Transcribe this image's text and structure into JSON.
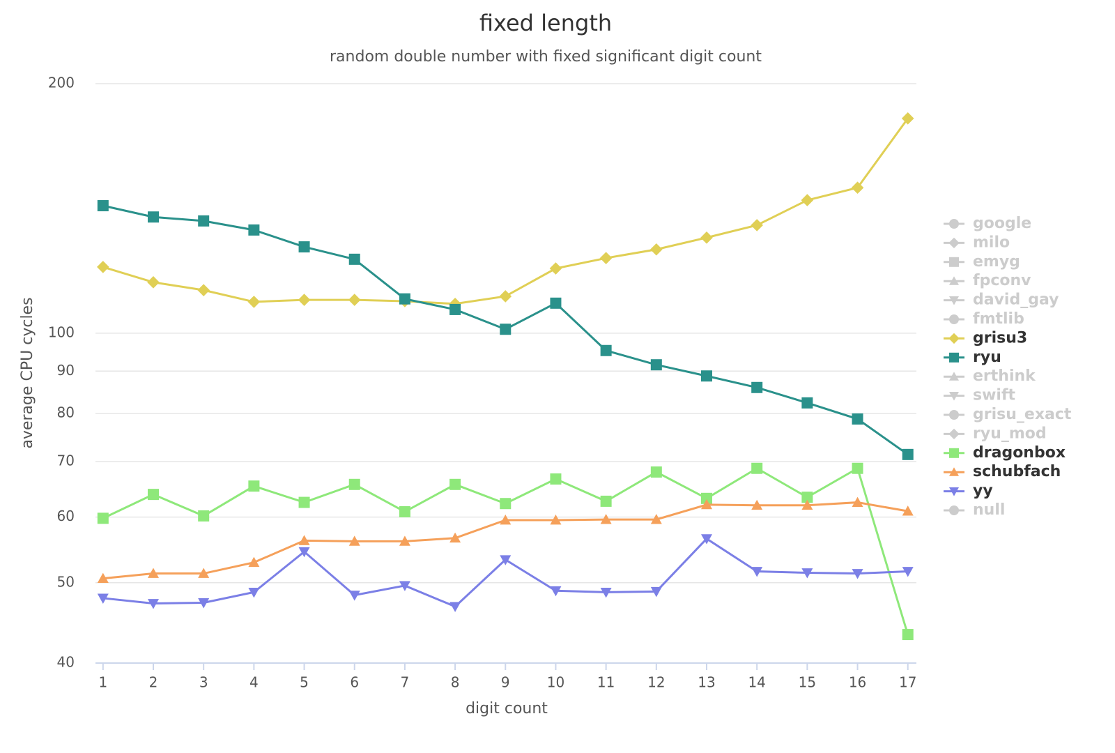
{
  "chart_data": {
    "type": "line",
    "title": "fixed length",
    "subtitle": "random double number with fixed significant digit count",
    "x_label": "digit count",
    "y_label": "average CPU cycles",
    "x": [
      1,
      2,
      3,
      4,
      5,
      6,
      7,
      8,
      9,
      10,
      11,
      12,
      13,
      14,
      15,
      16,
      17
    ],
    "xlim": [
      0.85,
      17.17
    ],
    "xticks": [
      1,
      2,
      3,
      4,
      5,
      6,
      7,
      8,
      9,
      10,
      11,
      12,
      13,
      14,
      15,
      16,
      17
    ],
    "ylim": [
      40,
      200
    ],
    "yticks": [
      40,
      50,
      60,
      70,
      80,
      90,
      100,
      200
    ],
    "log_y": true,
    "grid": true,
    "legend": "right",
    "hidden_color": "#cccccc",
    "series": [
      {
        "name": "google",
        "marker": "circle",
        "visible": false
      },
      {
        "name": "milo",
        "marker": "diamond",
        "visible": false
      },
      {
        "name": "emyg",
        "marker": "square",
        "visible": false
      },
      {
        "name": "fpconv",
        "marker": "triangle",
        "visible": false
      },
      {
        "name": "david_gay",
        "marker": "triangle-down",
        "visible": false
      },
      {
        "name": "fmtlib",
        "marker": "circle",
        "visible": false
      },
      {
        "name": "grisu3",
        "marker": "diamond",
        "visible": true,
        "color": "#e0cf55",
        "values": [
          120.2,
          115.2,
          112.7,
          109.1,
          109.7,
          109.7,
          109.3,
          108.5,
          110.8,
          119.7,
          123.2,
          126.2,
          130.4,
          135.0,
          144.7,
          149.8,
          181.6
        ]
      },
      {
        "name": "ryu",
        "marker": "square",
        "visible": true,
        "color": "#2a918b",
        "values": [
          142.5,
          138.1,
          136.6,
          133.2,
          127.1,
          122.8,
          110.0,
          106.8,
          101.1,
          108.7,
          95.3,
          91.6,
          88.8,
          86.0,
          82.4,
          78.8,
          71.4
        ]
      },
      {
        "name": "erthink",
        "marker": "triangle",
        "visible": false
      },
      {
        "name": "swift",
        "marker": "triangle-down",
        "visible": false
      },
      {
        "name": "grisu_exact",
        "marker": "circle",
        "visible": false
      },
      {
        "name": "ryu_mod",
        "marker": "diamond",
        "visible": false
      },
      {
        "name": "dragonbox",
        "marker": "square",
        "visible": true,
        "color": "#8ee87a",
        "values": [
          59.8,
          63.9,
          60.2,
          65.4,
          62.5,
          65.7,
          60.9,
          65.7,
          62.3,
          66.7,
          62.7,
          68.0,
          63.2,
          68.7,
          63.4,
          68.7,
          43.3
        ]
      },
      {
        "name": "schubfach",
        "marker": "triangle",
        "visible": true,
        "color": "#f5a05a",
        "values": [
          50.6,
          51.3,
          51.3,
          52.9,
          56.2,
          56.1,
          56.1,
          56.6,
          59.5,
          59.5,
          59.6,
          59.6,
          62.1,
          62.0,
          62.0,
          62.5,
          61.0
        ]
      },
      {
        "name": "yy",
        "marker": "triangle-down",
        "visible": true,
        "color": "#7b7fe6",
        "values": [
          47.9,
          47.2,
          47.3,
          48.7,
          54.5,
          48.3,
          49.6,
          46.8,
          53.3,
          48.9,
          48.7,
          48.8,
          56.5,
          51.6,
          51.4,
          51.3,
          51.6
        ]
      },
      {
        "name": "null",
        "marker": "circle",
        "visible": false
      }
    ]
  }
}
